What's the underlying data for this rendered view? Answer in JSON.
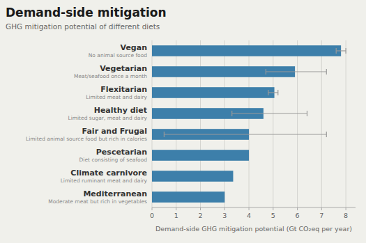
{
  "chart_data": {
    "type": "bar",
    "orientation": "horizontal",
    "title": "Demand-side mitigation",
    "subtitle": "GHG mitigation potential of different diets",
    "xlabel": "Demand-side GHG mitigation potential (Gt CO₂eq per year)",
    "categories": [
      "Mediterranean",
      "Climate carnivore",
      "Pescetarian",
      "Fair and Frugal",
      "Healthy diet",
      "Flexitarian",
      "Vegetarian",
      "Vegan"
    ],
    "sublabels": [
      "Moderate meat but rich in vegetables",
      "Limited ruminant meat and dairy",
      "Diet consisting of seafood",
      "Limited animal source food but rich in calories",
      "Limited sugar, meat and dairy",
      "Limited meat and dairy",
      "Meat/seafood once a month",
      "No animal source food"
    ],
    "values": [
      3.0,
      3.35,
      4.0,
      4.0,
      4.6,
      5.05,
      5.9,
      7.8
    ],
    "error_low": [
      0.0,
      0.0,
      0.0,
      3.5,
      1.3,
      0.25,
      1.2,
      0.2
    ],
    "error_high": [
      0.0,
      0.0,
      0.0,
      3.2,
      1.8,
      0.15,
      1.3,
      0.2
    ],
    "color": "#3d7faa",
    "xlim": [
      0,
      8.4
    ],
    "xticks": [
      0,
      1,
      2,
      3,
      4,
      5,
      6,
      7,
      8
    ],
    "grid": true
  }
}
